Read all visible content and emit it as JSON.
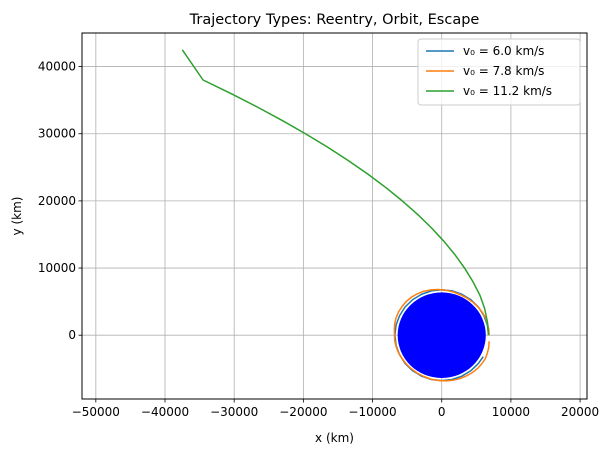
{
  "chart_data": {
    "type": "line",
    "title": "Trajectory Types: Reentry, Orbit, Escape",
    "xlabel": "x (km)",
    "ylabel": "y (km)",
    "xlim": [
      -52000,
      21000
    ],
    "ylim": [
      -9500,
      45000
    ],
    "x_ticks": [
      -50000,
      -40000,
      -30000,
      -20000,
      -10000,
      0,
      10000,
      20000
    ],
    "y_ticks": [
      0,
      10000,
      20000,
      30000,
      40000
    ],
    "grid": true,
    "legend_position": "top-right",
    "planet": {
      "radius": 6371,
      "color": "#0000ff"
    },
    "series": [
      {
        "name": "v₀ = 6.0 km/s",
        "color": "#1f77b4",
        "x": [
          6771,
          6600,
          6100,
          5300,
          4200,
          2900,
          1500,
          0,
          -1500,
          -2900,
          -4200,
          -5300,
          -6100,
          -6600,
          -6771,
          -6600,
          -6100,
          -5300,
          -4200,
          -2900,
          -1500,
          0,
          1500,
          2900,
          4200,
          5300,
          6000
        ],
        "y": [
          0,
          1500,
          2900,
          4200,
          5300,
          6100,
          6600,
          6771,
          6600,
          6100,
          5300,
          4200,
          2900,
          1500,
          0,
          -1500,
          -2900,
          -4200,
          -5300,
          -6100,
          -6600,
          -6771,
          -6600,
          -6100,
          -5300,
          -4200,
          -3200
        ]
      },
      {
        "name": "v₀ = 7.8 km/s",
        "color": "#ff7f0e",
        "x": [
          6850,
          6800,
          6600,
          6300,
          5800,
          5200,
          4450,
          3600,
          2650,
          1650,
          600,
          -500,
          -1550,
          -2600,
          -3550,
          -4400,
          -5150,
          -5750,
          -6250,
          -6600,
          -6800,
          -6850,
          -6800,
          -6600,
          -6250,
          -5750,
          -5150,
          -4400,
          -3550,
          -2600,
          -1550,
          -500,
          600,
          1650,
          2650,
          3600,
          4450,
          5200,
          5800,
          6300,
          6600,
          6800,
          6850
        ],
        "y": [
          0,
          900,
          1800,
          2650,
          3500,
          4250,
          4950,
          5550,
          6050,
          6450,
          6700,
          6800,
          6750,
          6550,
          6150,
          5650,
          5000,
          4250,
          3450,
          2600,
          1700,
          800,
          -800,
          -1700,
          -2600,
          -3450,
          -4250,
          -5000,
          -5650,
          -6150,
          -6550,
          -6750,
          -6800,
          -6700,
          -6450,
          -6050,
          -5550,
          -4950,
          -4250,
          -3500,
          -2650,
          -1800,
          -900
        ]
      },
      {
        "name": "v₀ = 11.2 km/s",
        "color": "#2ca02c",
        "x": [
          6771,
          6600,
          6200,
          5500,
          4500,
          3300,
          1900,
          300,
          -1500,
          -3500,
          -5700,
          -8100,
          -10700,
          -13500,
          -16500,
          -19700,
          -23100,
          -26700,
          -30500,
          -34500,
          -37500
        ],
        "y": [
          0,
          2000,
          4000,
          6000,
          8000,
          10000,
          12000,
          14000,
          16000,
          18000,
          20000,
          22000,
          24000,
          26000,
          28000,
          30000,
          32000,
          34000,
          36000,
          38000,
          42500
        ]
      }
    ]
  }
}
